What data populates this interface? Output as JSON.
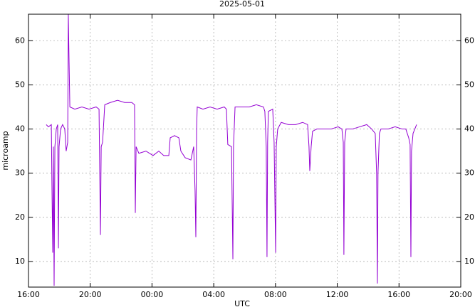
{
  "chart_data": {
    "type": "line",
    "title": "2025-05-01",
    "x_label": "UTC",
    "y_label": "microamp",
    "color": "#9400d3",
    "grid": true,
    "xlim": [
      16,
      44
    ],
    "xticks": [
      {
        "value": 16,
        "label": "16:00"
      },
      {
        "value": 20,
        "label": "20:00"
      },
      {
        "value": 24,
        "label": "00:00"
      },
      {
        "value": 28,
        "label": "04:00"
      },
      {
        "value": 32,
        "label": "08:00"
      },
      {
        "value": 36,
        "label": "12:00"
      },
      {
        "value": 40,
        "label": "16:00"
      },
      {
        "value": 44,
        "label": "20:00"
      }
    ],
    "ylim": [
      4.2,
      66
    ],
    "yticks": [
      10,
      20,
      30,
      40,
      50,
      60
    ],
    "x": [
      17.15,
      17.29,
      17.48,
      17.52,
      17.57,
      17.61,
      17.66,
      17.71,
      17.8,
      17.89,
      17.94,
      17.98,
      18.08,
      18.21,
      18.35,
      18.44,
      18.54,
      18.58,
      18.63,
      18.68,
      19.0,
      19.46,
      19.92,
      20.38,
      20.57,
      20.66,
      20.71,
      20.8,
      20.94,
      21.3,
      21.77,
      22.23,
      22.69,
      22.87,
      22.92,
      22.97,
      23.15,
      23.61,
      24.07,
      24.44,
      24.76,
      25.09,
      25.18,
      25.46,
      25.74,
      25.87,
      26.15,
      26.52,
      26.7,
      26.79,
      26.84,
      26.89,
      26.93,
      27.3,
      27.76,
      28.22,
      28.68,
      28.82,
      28.91,
      29.15,
      29.24,
      29.28,
      29.38,
      29.84,
      30.3,
      30.76,
      31.22,
      31.31,
      31.4,
      31.45,
      31.49,
      31.54,
      31.82,
      31.91,
      32.01,
      32.05,
      32.14,
      32.37,
      32.84,
      33.3,
      33.76,
      34.08,
      34.17,
      34.22,
      34.31,
      34.4,
      34.68,
      35.14,
      35.6,
      36.06,
      36.3,
      36.39,
      36.43,
      36.48,
      36.57,
      36.99,
      37.45,
      37.91,
      38.23,
      38.46,
      38.55,
      38.6,
      38.64,
      38.73,
      38.83,
      39.29,
      39.75,
      40.21,
      40.44,
      40.63,
      40.72,
      40.77,
      40.81,
      40.91,
      41.14
    ],
    "values": [
      41,
      40.5,
      41,
      27,
      12,
      36,
      4.5,
      36,
      40,
      41,
      13,
      36,
      40,
      41,
      40,
      35,
      37,
      66,
      55,
      45,
      44.5,
      45,
      44.5,
      45,
      44.5,
      16,
      36,
      37,
      45.5,
      46,
      46.5,
      46,
      46,
      45.5,
      21,
      36,
      34.5,
      35,
      34,
      35,
      34,
      34,
      38,
      38.5,
      38,
      35,
      33.5,
      33,
      36,
      26,
      15.5,
      40,
      45,
      44.5,
      45,
      44.5,
      45,
      44.5,
      36.5,
      36,
      10.5,
      36,
      45,
      45,
      45,
      45.5,
      45,
      44,
      36,
      11,
      37,
      44,
      44.5,
      37,
      12,
      36,
      40,
      41.5,
      41,
      41,
      41.5,
      41,
      36,
      30.5,
      36,
      39.5,
      40,
      40,
      40,
      40.5,
      40,
      37,
      11.5,
      37,
      40,
      40,
      40.5,
      41,
      40,
      39,
      30,
      5,
      30,
      39,
      40,
      40,
      40.5,
      40,
      40,
      38,
      36.5,
      11,
      35,
      39,
      41
    ]
  }
}
